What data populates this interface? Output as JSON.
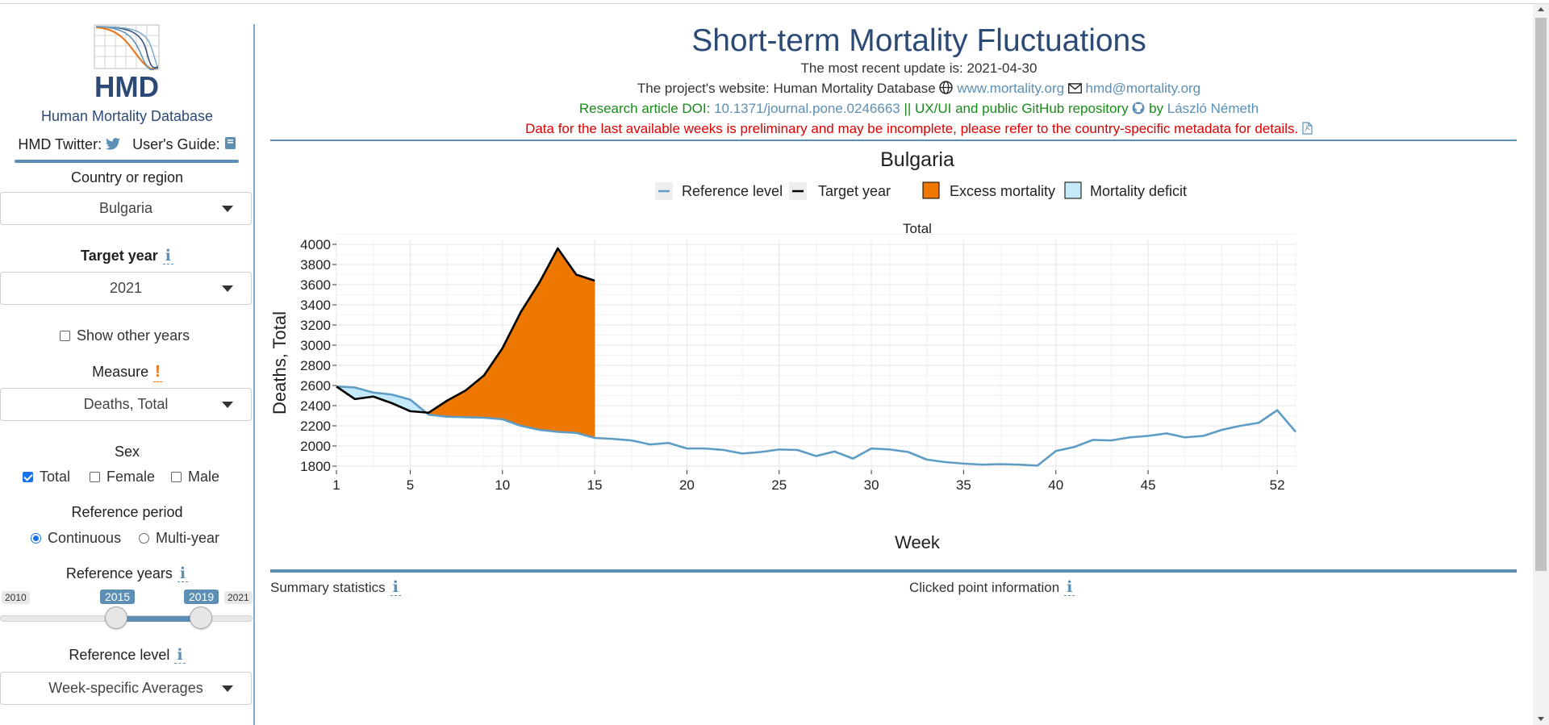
{
  "sidebar": {
    "logo_text": "HMD",
    "org_name": "Human Mortality Database",
    "twitter_label": "HMD Twitter:",
    "guide_label": "User's Guide:",
    "country": {
      "label": "Country or region",
      "value": "Bulgaria"
    },
    "target_year": {
      "label": "Target year",
      "value": "2021"
    },
    "show_other_years": {
      "label": "Show other years",
      "checked": false
    },
    "measure": {
      "label": "Measure",
      "value": "Deaths, Total"
    },
    "sex": {
      "label": "Sex",
      "options": [
        {
          "label": "Total",
          "checked": true
        },
        {
          "label": "Female",
          "checked": false
        },
        {
          "label": "Male",
          "checked": false
        }
      ]
    },
    "reference_period": {
      "label": "Reference period",
      "options": [
        {
          "label": "Continuous",
          "selected": true
        },
        {
          "label": "Multi-year",
          "selected": false
        }
      ]
    },
    "reference_years": {
      "label": "Reference years",
      "min": "2010",
      "max": "2021",
      "from": "2015",
      "to": "2019"
    },
    "reference_level": {
      "label": "Reference level",
      "value": "Week-specific Averages"
    }
  },
  "header": {
    "title": "Short-term Mortality Fluctuations",
    "update_line": "The most recent update is: 2021-04-30",
    "website_prefix": "The project's website: Human Mortality Database",
    "website_link": "www.mortality.org",
    "email_link": "hmd@mortality.org",
    "doi_prefix": "Research article DOI:",
    "doi_link": "10.1371/journal.pone.0246663",
    "repo_text": "|| UX/UI and public GitHub repository",
    "by_text": "by",
    "author_link": "László Németh",
    "warning": "Data for the last available weeks is preliminary and may be incomplete, please refer to the country-specific metadata for details."
  },
  "chart_data": {
    "type": "line",
    "title": "Bulgaria",
    "subtitle": "Total",
    "xlabel": "Week",
    "ylabel": "Deaths, Total",
    "xticks": [
      1,
      5,
      10,
      15,
      20,
      25,
      30,
      35,
      40,
      45,
      52
    ],
    "yticks": [
      1800,
      2000,
      2200,
      2400,
      2600,
      2800,
      3000,
      3200,
      3400,
      3600,
      3800,
      4000
    ],
    "xlim": [
      1,
      53
    ],
    "ylim": [
      1760,
      4040
    ],
    "legend_position": "top",
    "legend": [
      "Reference level",
      "Target year",
      "Excess mortality",
      "Mortality deficit"
    ],
    "colors": {
      "reference": "#5d9cc4",
      "target": "#000000",
      "excess": "#ee7700",
      "deficit": "#c4e9f9"
    },
    "reference": {
      "name": "Reference level",
      "x": [
        1,
        2,
        3,
        4,
        5,
        6,
        7,
        8,
        9,
        10,
        11,
        12,
        13,
        14,
        15,
        16,
        17,
        18,
        19,
        20,
        21,
        22,
        23,
        24,
        25,
        26,
        27,
        28,
        29,
        30,
        31,
        32,
        33,
        34,
        35,
        36,
        37,
        38,
        39,
        40,
        41,
        42,
        43,
        44,
        45,
        46,
        47,
        48,
        49,
        50,
        51,
        52,
        53
      ],
      "values": [
        2590,
        2580,
        2530,
        2510,
        2460,
        2310,
        2290,
        2285,
        2280,
        2265,
        2200,
        2160,
        2140,
        2130,
        2080,
        2070,
        2055,
        2015,
        2030,
        1975,
        1975,
        1960,
        1925,
        1940,
        1965,
        1960,
        1900,
        1945,
        1875,
        1975,
        1965,
        1940,
        1865,
        1840,
        1825,
        1815,
        1820,
        1815,
        1805,
        1950,
        1990,
        2060,
        2055,
        2085,
        2100,
        2125,
        2085,
        2100,
        2160,
        2200,
        2230,
        2355,
        2140
      ]
    },
    "target": {
      "name": "Target year",
      "x": [
        1,
        2,
        3,
        4,
        5,
        6,
        7,
        8,
        9,
        10,
        11,
        12,
        13,
        14,
        15
      ],
      "values": [
        2590,
        2465,
        2490,
        2425,
        2345,
        2330,
        2450,
        2550,
        2700,
        2970,
        3330,
        3620,
        3960,
        3700,
        3640
      ]
    }
  },
  "summary": {
    "left_label": "Summary statistics",
    "right_label": "Clicked point information"
  }
}
